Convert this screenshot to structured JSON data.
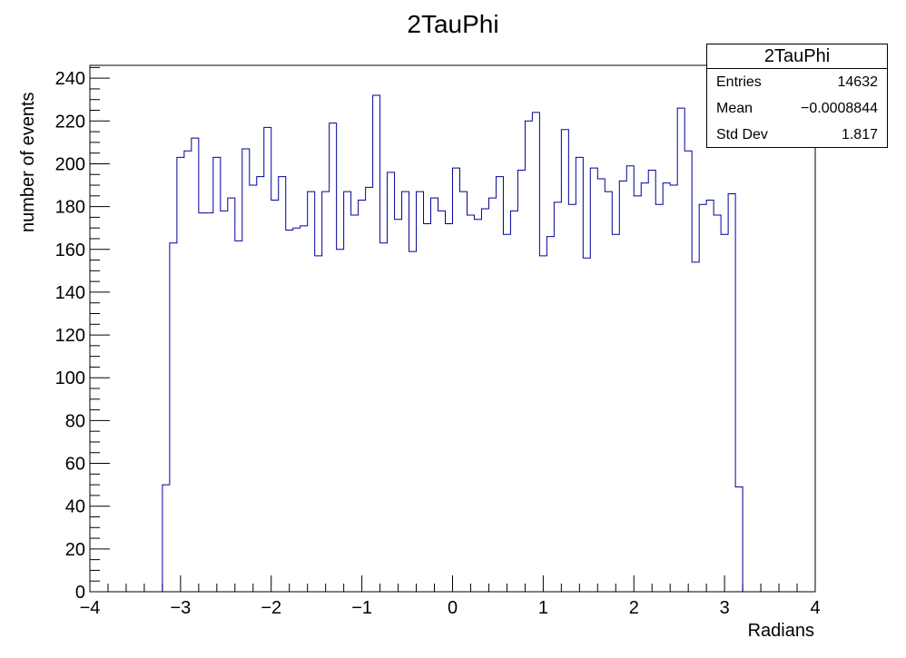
{
  "chart_data": {
    "type": "histogram",
    "title": "2TauPhi",
    "xlabel": "Radians",
    "ylabel": "number of events",
    "xlim": [
      -4,
      4
    ],
    "ylim": [
      0,
      246
    ],
    "xticks": [
      -4,
      -3,
      -2,
      -1,
      0,
      1,
      2,
      3,
      4
    ],
    "xtick_labels": [
      "−4",
      "−3",
      "−2",
      "−1",
      "0",
      "1",
      "2",
      "3",
      "4"
    ],
    "yticks": [
      0,
      20,
      40,
      60,
      80,
      100,
      120,
      140,
      160,
      180,
      200,
      220,
      240
    ],
    "ytick_labels": [
      "0",
      "20",
      "40",
      "60",
      "80",
      "100",
      "120",
      "140",
      "160",
      "180",
      "200",
      "220",
      "240"
    ],
    "bins": {
      "start": -3.2,
      "width": 0.08,
      "count": 80
    },
    "values": [
      50,
      163,
      203,
      206,
      212,
      177,
      177,
      203,
      178,
      184,
      164,
      207,
      190,
      194,
      217,
      183,
      194,
      169,
      170,
      171,
      187,
      157,
      187,
      219,
      160,
      187,
      176,
      183,
      189,
      232,
      163,
      196,
      174,
      187,
      159,
      187,
      172,
      184,
      178,
      172,
      198,
      187,
      176,
      174,
      179,
      184,
      194,
      167,
      178,
      197,
      220,
      224,
      157,
      166,
      182,
      216,
      181,
      203,
      156,
      198,
      193,
      187,
      167,
      192,
      199,
      185,
      191,
      197,
      181,
      191,
      190,
      226,
      206,
      154,
      181,
      183,
      176,
      167,
      186,
      49
    ],
    "line_color": "#000099"
  },
  "stats": {
    "title": "2TauPhi",
    "rows": [
      {
        "label": "Entries",
        "value": "14632"
      },
      {
        "label": "Mean",
        "value": "−0.0008844"
      },
      {
        "label": "Std Dev",
        "value": "1.817"
      }
    ]
  }
}
